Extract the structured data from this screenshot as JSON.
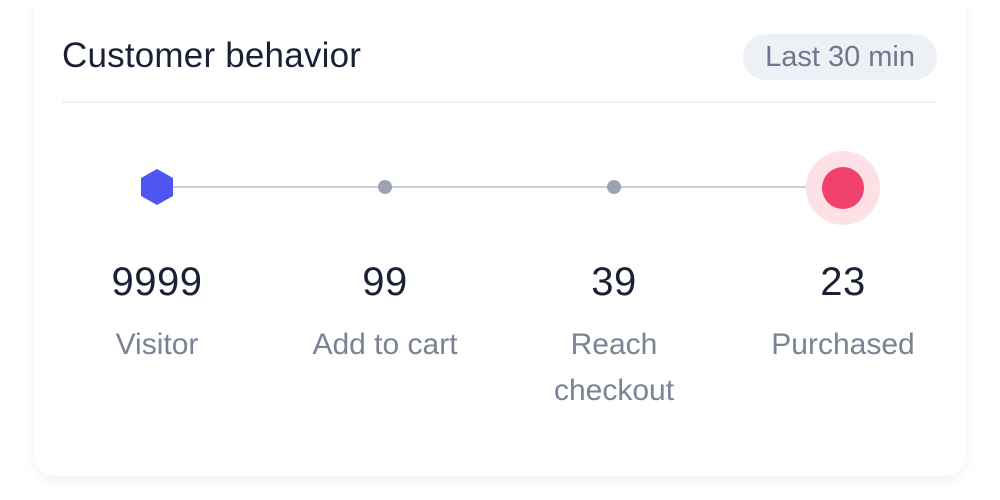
{
  "header": {
    "title": "Customer behavior",
    "range_badge": "Last 30 min"
  },
  "funnel": {
    "steps": [
      {
        "value": "9999",
        "label": "Visitor",
        "marker": "hexagon",
        "color": "#4f55f1"
      },
      {
        "value": "99",
        "label": "Add to cart",
        "marker": "dot",
        "color": "#9aa2b2"
      },
      {
        "value": "39",
        "label": "Reach checkout",
        "marker": "dot",
        "color": "#9aa2b2"
      },
      {
        "value": "23",
        "label": "Purchased",
        "marker": "circle-ring",
        "color": "#f0416c"
      }
    ]
  },
  "colors": {
    "title_text": "#1a2136",
    "muted_text": "#7a8296",
    "badge_bg": "#edf0f5",
    "track": "#c9ced8",
    "ring": "#fde1e7"
  }
}
